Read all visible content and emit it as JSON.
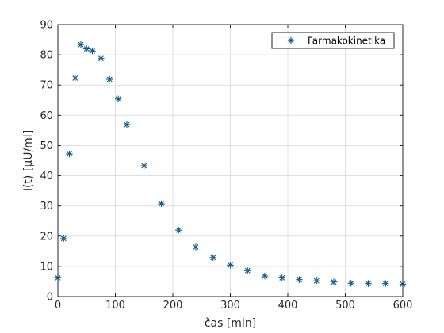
{
  "chart_data": {
    "type": "scatter",
    "xlabel": "čas [min]",
    "ylabel": "I(t) [μU/ml]",
    "xlim": [
      0,
      600
    ],
    "ylim": [
      0,
      90
    ],
    "xticks": [
      "0",
      "100",
      "200",
      "300",
      "400",
      "500",
      "600"
    ],
    "yticks": [
      "0",
      "10",
      "20",
      "30",
      "40",
      "50",
      "60",
      "70",
      "80",
      "90"
    ],
    "grid": true,
    "legend_position": "top-right",
    "marker": "asterisk",
    "series": [
      {
        "name": "Farmakokinetika",
        "color": "#0a5a8c",
        "x": [
          0,
          10,
          20,
          30,
          40,
          50,
          60,
          75,
          90,
          105,
          120,
          150,
          180,
          210,
          240,
          270,
          300,
          330,
          360,
          390,
          420,
          450,
          480,
          510,
          540,
          570,
          600
        ],
        "y": [
          6.2,
          19.2,
          47.2,
          72.3,
          83.4,
          82.0,
          81.3,
          78.8,
          71.9,
          65.4,
          56.9,
          43.3,
          30.7,
          22.0,
          16.4,
          12.9,
          10.4,
          8.6,
          6.8,
          6.2,
          5.6,
          5.2,
          4.8,
          4.4,
          4.3,
          4.3,
          4.1
        ]
      }
    ]
  }
}
